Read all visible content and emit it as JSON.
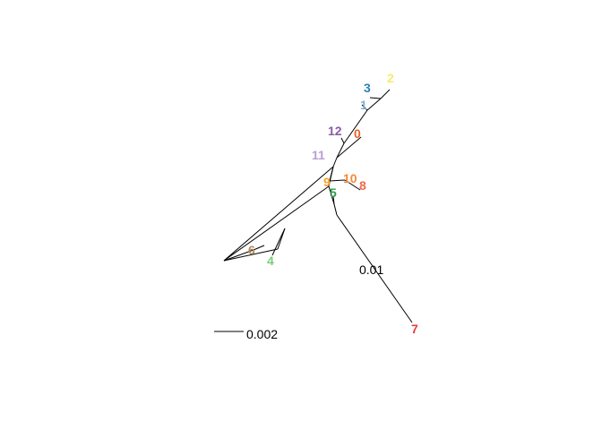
{
  "tree": {
    "tips": [
      {
        "label": "0",
        "color": "#e5642a"
      },
      {
        "label": "1",
        "color": "#7fb0d4"
      },
      {
        "label": "2",
        "color": "#f7ec6a"
      },
      {
        "label": "3",
        "color": "#2f7fb8"
      },
      {
        "label": "4",
        "color": "#7ccc7a"
      },
      {
        "label": "5",
        "color": "#2e9e4a"
      },
      {
        "label": "6",
        "color": "#b08a5a"
      },
      {
        "label": "7",
        "color": "#e04040"
      },
      {
        "label": "8",
        "color": "#ee6a4a"
      },
      {
        "label": "9",
        "color": "#f6a22a"
      },
      {
        "label": "10",
        "color": "#f08a3a"
      },
      {
        "label": "11",
        "color": "#b8a0d4"
      },
      {
        "label": "12",
        "color": "#8a5aa8"
      }
    ],
    "branch_annotation": "0.01",
    "scale_bar_label": "0.002"
  }
}
